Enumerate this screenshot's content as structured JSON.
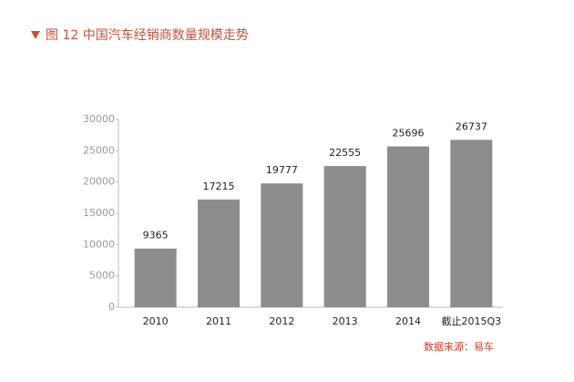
{
  "chart_data": {
    "type": "bar",
    "title": "图 12  中国汽车经销商数量规模走势",
    "source": "数据来源：易车",
    "categories": [
      "2010",
      "2011",
      "2012",
      "2013",
      "2014",
      "截止2015Q3"
    ],
    "values": [
      9365,
      17215,
      19777,
      22555,
      25696,
      26737
    ],
    "color": "#8c8c8c",
    "ylim": [
      0,
      30000
    ],
    "yticks": [
      0,
      5000,
      10000,
      15000,
      20000,
      25000,
      30000
    ],
    "grid": false
  }
}
